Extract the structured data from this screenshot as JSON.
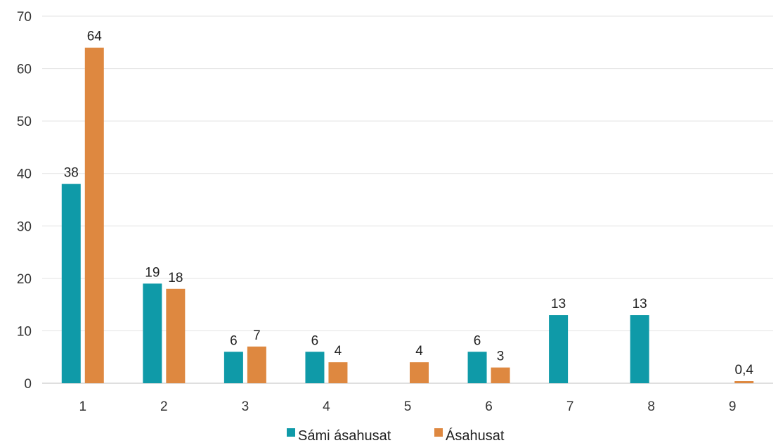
{
  "chart_data": {
    "type": "bar",
    "categories": [
      "1",
      "2",
      "3",
      "4",
      "5",
      "6",
      "7",
      "8",
      "9"
    ],
    "series": [
      {
        "name": "Sámi ásahusat",
        "color": "#0F9AA8",
        "values": [
          38,
          19,
          6,
          6,
          null,
          6,
          13,
          13,
          null
        ],
        "labels": [
          "38",
          "19",
          "6",
          "6",
          "",
          "6",
          "13",
          "13",
          ""
        ]
      },
      {
        "name": "Ásahusat",
        "color": "#DE8840",
        "values": [
          64,
          18,
          7,
          4,
          4,
          3,
          null,
          null,
          0.4
        ],
        "labels": [
          "64",
          "18",
          "7",
          "4",
          "4",
          "3",
          "",
          "",
          "0,4"
        ]
      }
    ],
    "yticks": [
      "0",
      "10",
      "20",
      "30",
      "40",
      "50",
      "60",
      "70"
    ],
    "ylim": [
      0,
      70
    ],
    "grid": true,
    "legend": "bottom"
  }
}
